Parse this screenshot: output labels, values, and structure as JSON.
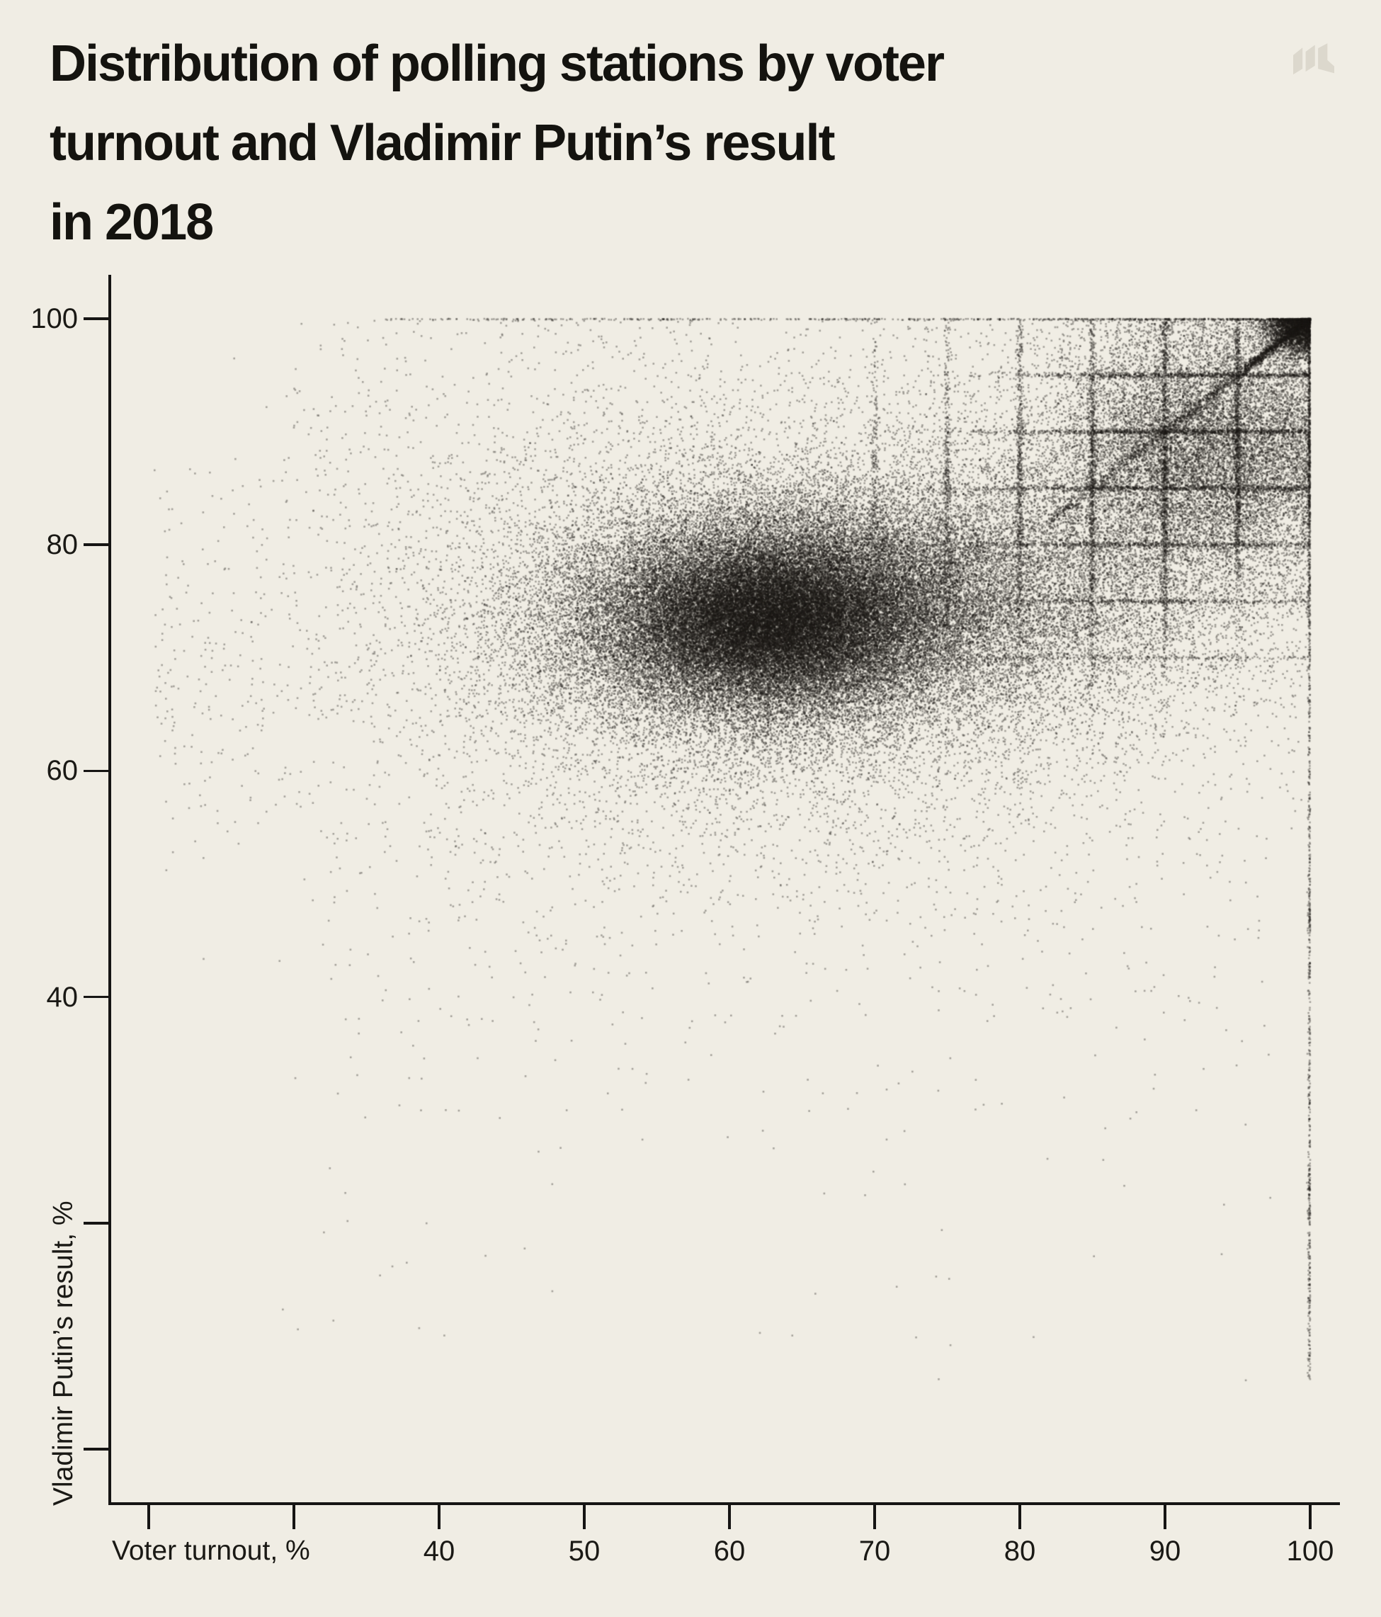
{
  "page": {
    "background": "#f0ede4",
    "text_color": "#14130f",
    "logo_color": "#dcd8cd",
    "logo_name": "meduza-m-logo"
  },
  "header": {
    "title_lines": [
      "Distribution of polling stations by voter",
      "turnout and Vladimir Putin’s result",
      "in 2018"
    ]
  },
  "chart_data": {
    "type": "scatter",
    "title": "Distribution of polling stations by voter turnout and Vladimir Putin’s result in 2018",
    "xlabel": "Voter turnout, %",
    "ylabel": "Vladimir Putin’s result, %",
    "x_range": [
      20,
      100
    ],
    "y_range": [
      0,
      100
    ],
    "x_ticks_labeled": [
      40,
      50,
      60,
      70,
      80,
      90,
      100
    ],
    "x_ticks_unlabeled": [
      20,
      30
    ],
    "y_ticks_labeled": [
      100,
      80,
      60,
      40
    ],
    "y_ticks_unlabeled": [
      20,
      0
    ],
    "grid": false,
    "legend": "none",
    "point_color": "#191714",
    "point_alpha": 0.35,
    "point_radius": 1.3,
    "seed": 42,
    "description": "Each dot is one polling station; dense cloud near turnout 60-65% and Putin result ~74%; anomalous grid lines at multiples of 5% in the high-turnout zone; diagonal streak toward (100,100); dotted vertical line at 100% turnout; sparse row at 100% result.",
    "clusters": [
      {
        "name": "main-cloud",
        "kind": "gauss2",
        "n": 38000,
        "cx": 62.5,
        "cy": 73.5,
        "sx": 7.2,
        "sy": 4.8,
        "clip": [
          21,
          100,
          40,
          100
        ]
      },
      {
        "name": "dense-core",
        "kind": "gauss2",
        "n": 16000,
        "cx": 62.5,
        "cy": 73.2,
        "sx": 4.4,
        "sy": 3.1,
        "clip": [
          21,
          100,
          40,
          100
        ]
      },
      {
        "name": "east-extension",
        "kind": "gauss2",
        "n": 9000,
        "cx": 70,
        "cy": 75.5,
        "sx": 6.5,
        "sy": 5,
        "clip": [
          21,
          100,
          40,
          100
        ]
      },
      {
        "name": "halo",
        "kind": "gauss2",
        "n": 13000,
        "cx": 64,
        "cy": 73,
        "sx": 13.5,
        "sy": 9.5,
        "clip": [
          20.3,
          100,
          35,
          100
        ]
      },
      {
        "name": "right-bridge",
        "kind": "gauss2",
        "n": 7500,
        "cx": 83,
        "cy": 77,
        "sx": 7.5,
        "sy": 6.5,
        "clip": [
          21,
          100,
          45,
          100
        ]
      },
      {
        "name": "high-turnout-tail",
        "kind": "gauss2",
        "n": 15000,
        "cx": 92.5,
        "cy": 88.5,
        "sx": 5.5,
        "sy": 6,
        "clip": [
          60,
          100,
          55,
          100
        ]
      },
      {
        "name": "corner-blob",
        "kind": "gauss2",
        "n": 2600,
        "cx": 99,
        "cy": 99,
        "sx": 1.1,
        "sy": 1.1,
        "clip": [
          93,
          100,
          93,
          100
        ]
      },
      {
        "name": "vline-70",
        "kind": "xy",
        "n": 260,
        "x": {
          "dist": "const",
          "value": 70,
          "sd": 0.12
        },
        "y": {
          "dist": "gauss",
          "mean": 84,
          "sd": 8.5,
          "min": 58,
          "max": 100
        }
      },
      {
        "name": "vline-75",
        "kind": "xy",
        "n": 420,
        "x": {
          "dist": "const",
          "value": 75,
          "sd": 0.12
        },
        "y": {
          "dist": "gauss",
          "mean": 84,
          "sd": 8.5,
          "min": 58,
          "max": 100
        }
      },
      {
        "name": "vline-80",
        "kind": "xy",
        "n": 620,
        "x": {
          "dist": "const",
          "value": 80,
          "sd": 0.12
        },
        "y": {
          "dist": "gauss",
          "mean": 84,
          "sd": 8.5,
          "min": 58,
          "max": 100
        }
      },
      {
        "name": "vline-85",
        "kind": "xy",
        "n": 820,
        "x": {
          "dist": "const",
          "value": 85,
          "sd": 0.12
        },
        "y": {
          "dist": "gauss",
          "mean": 85,
          "sd": 8.5,
          "min": 58,
          "max": 100
        }
      },
      {
        "name": "vline-90",
        "kind": "xy",
        "n": 950,
        "x": {
          "dist": "const",
          "value": 90,
          "sd": 0.12
        },
        "y": {
          "dist": "gauss",
          "mean": 86,
          "sd": 8.5,
          "min": 58,
          "max": 100
        }
      },
      {
        "name": "vline-95",
        "kind": "xy",
        "n": 880,
        "x": {
          "dist": "const",
          "value": 95,
          "sd": 0.12
        },
        "y": {
          "dist": "gauss",
          "mean": 88,
          "sd": 8,
          "min": 58,
          "max": 100
        }
      },
      {
        "name": "hline-70",
        "kind": "xy",
        "n": 240,
        "x": {
          "dist": "gauss",
          "mean": 88,
          "sd": 8,
          "min": 66,
          "max": 100
        },
        "y": {
          "dist": "const",
          "value": 70,
          "sd": 0.12
        }
      },
      {
        "name": "hline-75",
        "kind": "xy",
        "n": 420,
        "x": {
          "dist": "gauss",
          "mean": 89,
          "sd": 7.5,
          "min": 66,
          "max": 100
        },
        "y": {
          "dist": "const",
          "value": 75,
          "sd": 0.12
        }
      },
      {
        "name": "hline-80",
        "kind": "xy",
        "n": 620,
        "x": {
          "dist": "gauss",
          "mean": 90,
          "sd": 7.5,
          "min": 68,
          "max": 100
        },
        "y": {
          "dist": "const",
          "value": 80,
          "sd": 0.12
        }
      },
      {
        "name": "hline-85",
        "kind": "xy",
        "n": 800,
        "x": {
          "dist": "gauss",
          "mean": 90,
          "sd": 7.5,
          "min": 68,
          "max": 100
        },
        "y": {
          "dist": "const",
          "value": 85,
          "sd": 0.12
        }
      },
      {
        "name": "hline-90",
        "kind": "xy",
        "n": 900,
        "x": {
          "dist": "gauss",
          "mean": 91,
          "sd": 7,
          "min": 70,
          "max": 100
        },
        "y": {
          "dist": "const",
          "value": 90,
          "sd": 0.12
        }
      },
      {
        "name": "hline-95",
        "kind": "xy",
        "n": 820,
        "x": {
          "dist": "gauss",
          "mean": 92,
          "sd": 6.5,
          "min": 72,
          "max": 100
        },
        "y": {
          "dist": "const",
          "value": 95,
          "sd": 0.12
        }
      },
      {
        "name": "diagonal-line",
        "kind": "diag",
        "n": 1500,
        "min": 82,
        "max": 100,
        "p": 1.6,
        "sd": 0.3
      },
      {
        "name": "diagonal-dense-end",
        "kind": "diag",
        "n": 520,
        "min": 95.5,
        "max": 100,
        "p": 1,
        "sd": 0.22
      },
      {
        "name": "turnout-100-line-top",
        "kind": "xy",
        "n": 650,
        "x": {
          "dist": "const",
          "value": 100,
          "sd": 0.07,
          "max": 100
        },
        "y": {
          "dist": "gauss",
          "mean": 88,
          "sd": 8,
          "min": 60,
          "max": 100
        }
      },
      {
        "name": "turnout-100-line-mid",
        "kind": "xy",
        "n": 260,
        "x": {
          "dist": "const",
          "value": 100,
          "sd": 0.07,
          "max": 100
        },
        "y": {
          "dist": "uniform",
          "min": 45,
          "max": 78
        }
      },
      {
        "name": "turnout-100-line-low",
        "kind": "xy",
        "n": 230,
        "x": {
          "dist": "const",
          "value": 100,
          "sd": 0.07,
          "max": 100
        },
        "y": {
          "dist": "uniform",
          "min": 20,
          "max": 50
        }
      },
      {
        "name": "turnout-100-line-bottom",
        "kind": "xy",
        "n": 160,
        "x": {
          "dist": "const",
          "value": 100,
          "sd": 0.07,
          "max": 100
        },
        "y": {
          "dist": "uniform",
          "min": 6,
          "max": 24
        }
      },
      {
        "name": "result-100-row",
        "kind": "xy",
        "n": 850,
        "x": {
          "dist": "pow",
          "min": 36,
          "max": 100,
          "p": 2.4
        },
        "y": {
          "dist": "const",
          "value": 100,
          "sd": 0.07,
          "max": 100
        }
      },
      {
        "name": "low-result-band",
        "kind": "xy",
        "n": 450,
        "x": {
          "dist": "pow",
          "min": 32,
          "max": 98,
          "p": 0.9
        },
        "y": {
          "dist": "powlow",
          "min": 20,
          "max": 56,
          "p": 0.45
        }
      },
      {
        "name": "deep-strays",
        "kind": "xy",
        "n": 45,
        "x": {
          "dist": "uniform",
          "min": 28,
          "max": 98
        },
        "y": {
          "dist": "uniform",
          "min": 6,
          "max": 34
        }
      },
      {
        "name": "left-sparse",
        "kind": "xy",
        "n": 300,
        "x": {
          "dist": "powlow",
          "min": 20.4,
          "max": 42,
          "p": 1.4
        },
        "y": {
          "dist": "gauss",
          "mean": 71,
          "sd": 9,
          "min": 42,
          "max": 97
        }
      },
      {
        "name": "top-sparse",
        "kind": "xy",
        "n": 420,
        "x": {
          "dist": "uniform",
          "min": 30,
          "max": 76
        },
        "y": {
          "dist": "uniform",
          "min": 84,
          "max": 100
        }
      }
    ]
  }
}
